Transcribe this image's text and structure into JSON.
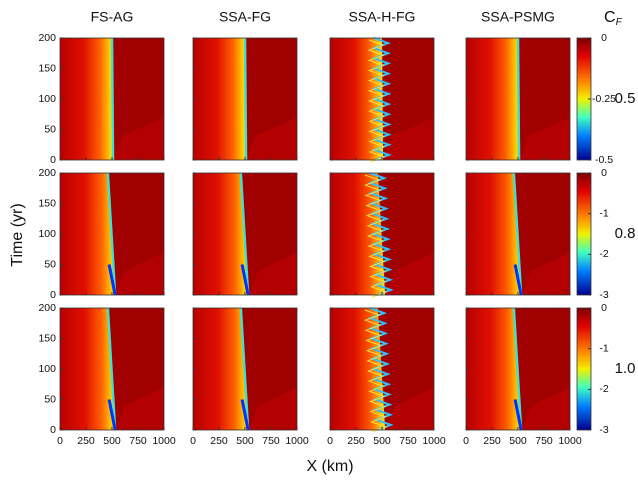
{
  "chart_data": {
    "type": "heatmap-grid",
    "columns": [
      "FS-AG",
      "SSA-FG",
      "SSA-H-FG",
      "SSA-PSMG"
    ],
    "colorbar_title": "C",
    "colorbar_title_subscript": "F",
    "xlabel": "X (km)",
    "ylabel": "Time (yr)",
    "xlim": [
      0,
      1000
    ],
    "xticks": [
      0,
      250,
      500,
      750,
      1000
    ],
    "ylim": [
      0,
      200
    ],
    "yticks": [
      0,
      50,
      100,
      150,
      200
    ],
    "rows": [
      {
        "label": "0.5",
        "clim": [
          -0.5,
          0
        ],
        "cticks": [
          0,
          -0.25,
          -0.5
        ]
      },
      {
        "label": "0.8",
        "clim": [
          -3,
          0
        ],
        "cticks": [
          0,
          -1,
          -2,
          -3
        ]
      },
      {
        "label": "1.0",
        "clim": [
          -3,
          0
        ],
        "cticks": [
          0,
          -1,
          -2,
          -3
        ]
      }
    ]
  }
}
